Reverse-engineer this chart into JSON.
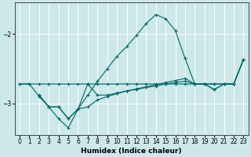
{
  "xlabel": "Humidex (Indice chaleur)",
  "bg_color": "#cce8e8",
  "grid_color": "#ffffff",
  "line_color": "#006666",
  "xlim": [
    -0.5,
    23.5
  ],
  "ylim": [
    -3.45,
    -1.55
  ],
  "yticks": [
    -3,
    -2
  ],
  "xticks": [
    0,
    1,
    2,
    3,
    4,
    5,
    6,
    7,
    8,
    9,
    10,
    11,
    12,
    13,
    14,
    15,
    16,
    17,
    18,
    19,
    20,
    21,
    22,
    23
  ],
  "lines": [
    {
      "x": [
        0,
        1,
        2,
        3,
        4,
        5,
        6,
        7,
        8,
        9,
        10,
        11,
        12,
        13,
        14,
        15,
        16,
        17,
        18,
        19,
        20,
        21,
        22,
        23
      ],
      "y": [
        -2.72,
        -2.72,
        -2.72,
        -2.72,
        -2.72,
        -2.72,
        -2.72,
        -2.72,
        -2.72,
        -2.72,
        -2.72,
        -2.72,
        -2.72,
        -2.72,
        -2.72,
        -2.72,
        -2.72,
        -2.72,
        -2.72,
        -2.72,
        -2.72,
        -2.72,
        -2.72,
        -2.37
      ]
    },
    {
      "x": [
        0,
        1,
        2,
        3,
        4,
        5,
        6,
        7,
        8,
        9,
        10,
        11,
        12,
        13,
        14,
        15,
        16,
        17,
        18,
        19,
        20,
        21,
        22,
        23
      ],
      "y": [
        -2.72,
        -2.72,
        -2.9,
        -3.05,
        -3.05,
        -3.22,
        -3.08,
        -2.88,
        -2.68,
        -2.5,
        -2.32,
        -2.18,
        -2.02,
        -1.85,
        -1.72,
        -1.78,
        -1.95,
        -2.35,
        -2.72,
        -2.72,
        -2.72,
        -2.72,
        -2.72,
        -2.37
      ]
    },
    {
      "x": [
        2,
        3,
        4,
        5,
        6,
        7,
        8,
        9,
        10,
        11,
        12,
        13,
        14,
        15,
        16,
        17,
        18,
        19,
        20,
        21,
        22,
        23
      ],
      "y": [
        -2.88,
        -3.05,
        -3.05,
        -3.22,
        -3.08,
        -2.72,
        -2.88,
        -2.88,
        -2.85,
        -2.82,
        -2.8,
        -2.77,
        -2.75,
        -2.72,
        -2.7,
        -2.68,
        -2.72,
        -2.72,
        -2.8,
        -2.72,
        -2.72,
        -2.37
      ]
    },
    {
      "x": [
        2,
        3,
        4,
        5,
        6,
        7,
        8,
        9,
        10,
        11,
        12,
        13,
        14,
        15,
        16,
        17,
        18,
        19,
        20,
        21,
        22,
        23
      ],
      "y": [
        -2.88,
        -3.05,
        -3.22,
        -3.35,
        -3.08,
        -3.05,
        -2.95,
        -2.9,
        -2.86,
        -2.82,
        -2.79,
        -2.76,
        -2.73,
        -2.7,
        -2.67,
        -2.64,
        -2.72,
        -2.72,
        -2.8,
        -2.72,
        -2.72,
        -2.37
      ]
    }
  ]
}
